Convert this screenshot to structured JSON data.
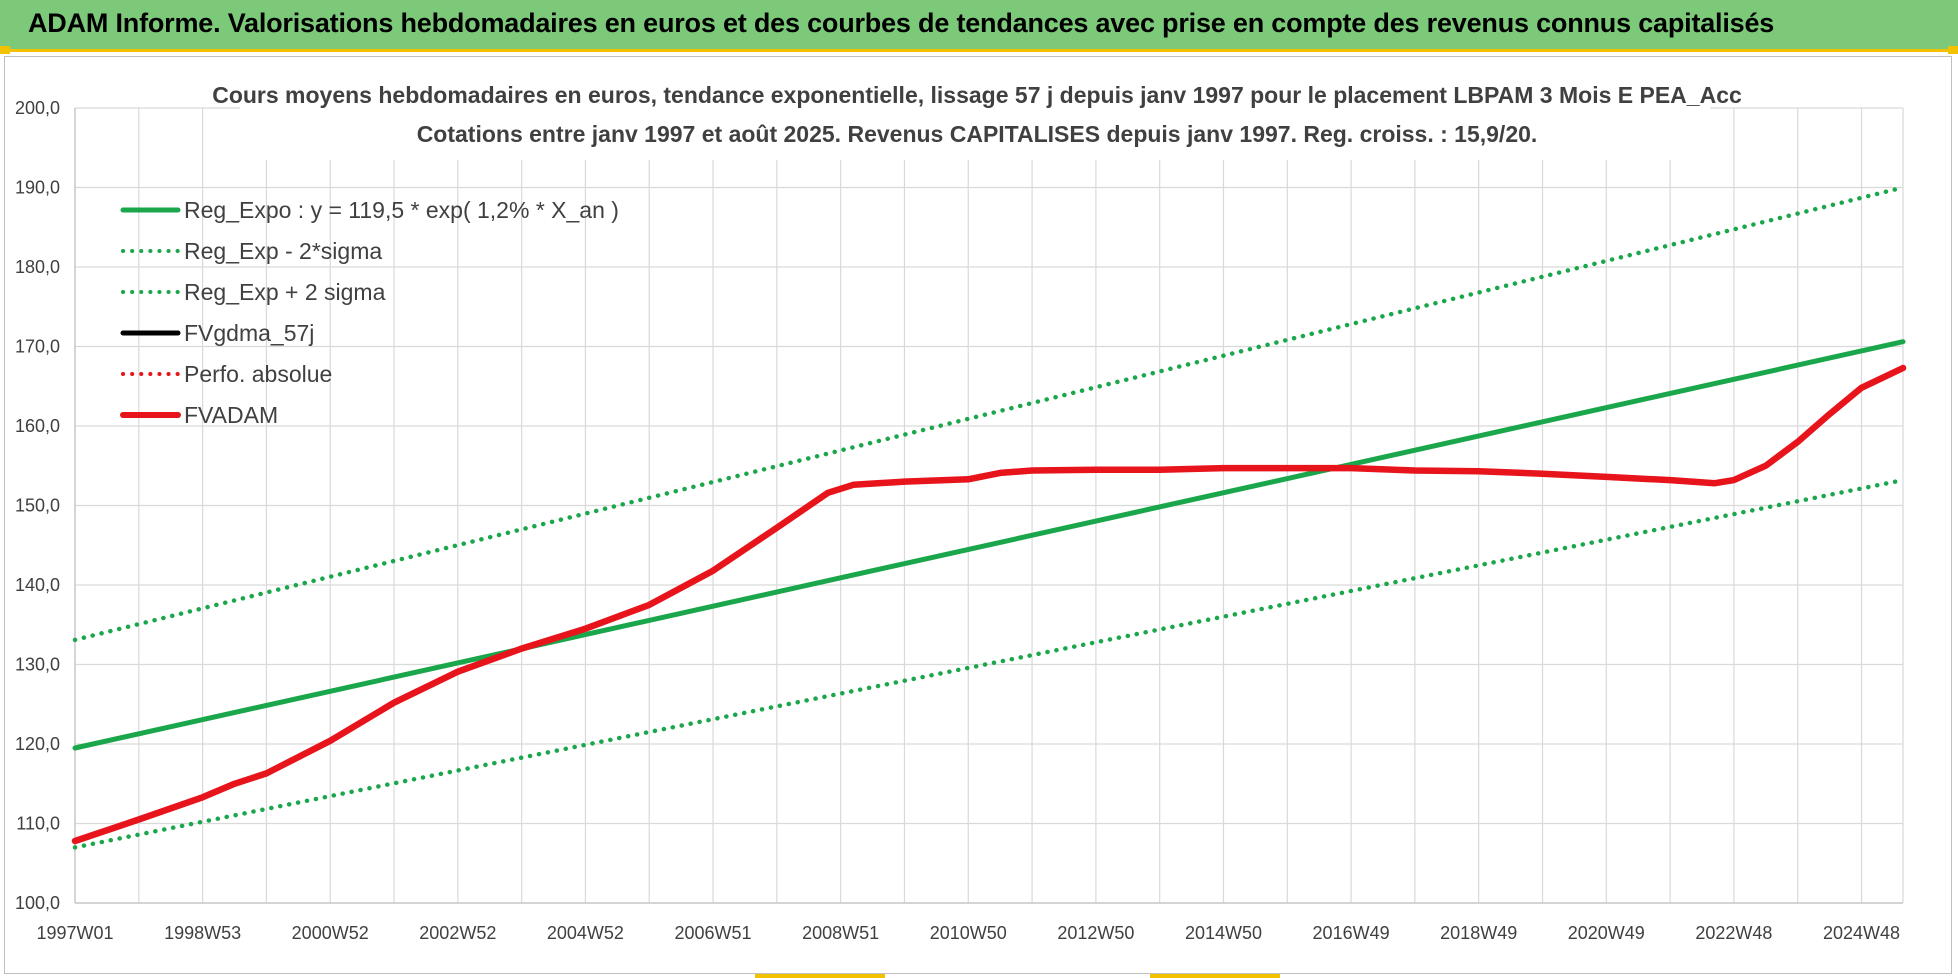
{
  "banner": {
    "title": "ADAM Informe. Valorisations hebdomadaires en euros et des courbes de tendances avec prise en compte des revenus connus capitalisés"
  },
  "colors": {
    "banner_bg": "#7dc97a",
    "accent_yellow": "#f2c200",
    "reg_green": "#1aa64a",
    "fvadam_red": "#e8141c",
    "black": "#000000",
    "grid": "#d9d9d9"
  },
  "chart_data": {
    "type": "line",
    "title": "Cours moyens hebdomadaires en euros, tendance exponentielle, lissage 57 j depuis janv 1997 pour le placement LBPAM 3 Mois E PEA_Acc",
    "subtitle": "Cotations entre janv 1997 et août 2025. Revenus CAPITALISES depuis janv 1997. Reg. croiss. : 15,9/20.",
    "xlabel": "",
    "ylabel": "",
    "ylim": [
      100,
      200
    ],
    "yticks": [
      "100,0",
      "110,0",
      "120,0",
      "130,0",
      "140,0",
      "150,0",
      "160,0",
      "170,0",
      "180,0",
      "190,0",
      "200,0"
    ],
    "xlim": [
      1997.0,
      2025.65
    ],
    "xticks": [
      {
        "label": "1997W01",
        "x": 1997.0
      },
      {
        "label": "1998W53",
        "x": 1999.0
      },
      {
        "label": "2000W52",
        "x": 2001.0
      },
      {
        "label": "2002W52",
        "x": 2003.0
      },
      {
        "label": "2004W52",
        "x": 2005.0
      },
      {
        "label": "2006W51",
        "x": 2007.0
      },
      {
        "label": "2008W51",
        "x": 2009.0
      },
      {
        "label": "2010W50",
        "x": 2011.0
      },
      {
        "label": "2012W50",
        "x": 2013.0
      },
      {
        "label": "2014W50",
        "x": 2015.0
      },
      {
        "label": "2016W49",
        "x": 2017.0
      },
      {
        "label": "2018W49",
        "x": 2019.0
      },
      {
        "label": "2020W49",
        "x": 2021.0
      },
      {
        "label": "2022W48",
        "x": 2023.0
      },
      {
        "label": "2024W48",
        "x": 2025.0
      }
    ],
    "grid": true,
    "legend_position": "top-left",
    "series": [
      {
        "name": "Reg_Expo : y = 119,5 * exp( 1,2% *  X_an )",
        "style": "solid",
        "color": "#1aa64a",
        "x": [
          1997.0,
          2025.65
        ],
        "y": [
          119.5,
          170.6
        ]
      },
      {
        "name": "Reg_Exp - 2*sigma",
        "style": "dotted",
        "color": "#1aa64a",
        "x": [
          1997.0,
          2025.65
        ],
        "y": [
          107.0,
          153.2
        ]
      },
      {
        "name": "Reg_Exp + 2 sigma",
        "style": "dotted",
        "color": "#1aa64a",
        "x": [
          1997.0,
          2025.65
        ],
        "y": [
          133.1,
          190.0
        ]
      },
      {
        "name": "FVgdma_57j",
        "style": "solid",
        "color": "#000000",
        "x": [],
        "y": []
      },
      {
        "name": "Perfo. absolue",
        "style": "dotted",
        "color": "#e8141c",
        "x": [],
        "y": []
      },
      {
        "name": "FVADAM",
        "style": "solid",
        "color": "#e8141c",
        "x": [
          1997.0,
          1998.0,
          1999.0,
          1999.5,
          2000.0,
          2001.0,
          2002.0,
          2003.0,
          2004.0,
          2005.0,
          2006.0,
          2007.0,
          2008.0,
          2008.8,
          2009.2,
          2010.0,
          2011.0,
          2011.5,
          2012.0,
          2013.0,
          2014.0,
          2015.0,
          2016.0,
          2017.0,
          2018.0,
          2019.0,
          2020.0,
          2021.0,
          2022.0,
          2022.7,
          2023.0,
          2023.5,
          2024.0,
          2024.5,
          2025.0,
          2025.65
        ],
        "y": [
          107.8,
          110.5,
          113.3,
          115.0,
          116.3,
          120.4,
          125.2,
          129.1,
          132.0,
          134.5,
          137.5,
          141.8,
          147.2,
          151.6,
          152.6,
          153.0,
          153.3,
          154.1,
          154.4,
          154.5,
          154.5,
          154.7,
          154.7,
          154.7,
          154.4,
          154.3,
          154.0,
          153.6,
          153.2,
          152.8,
          153.2,
          155.0,
          158.0,
          161.5,
          164.8,
          167.3
        ]
      }
    ]
  }
}
